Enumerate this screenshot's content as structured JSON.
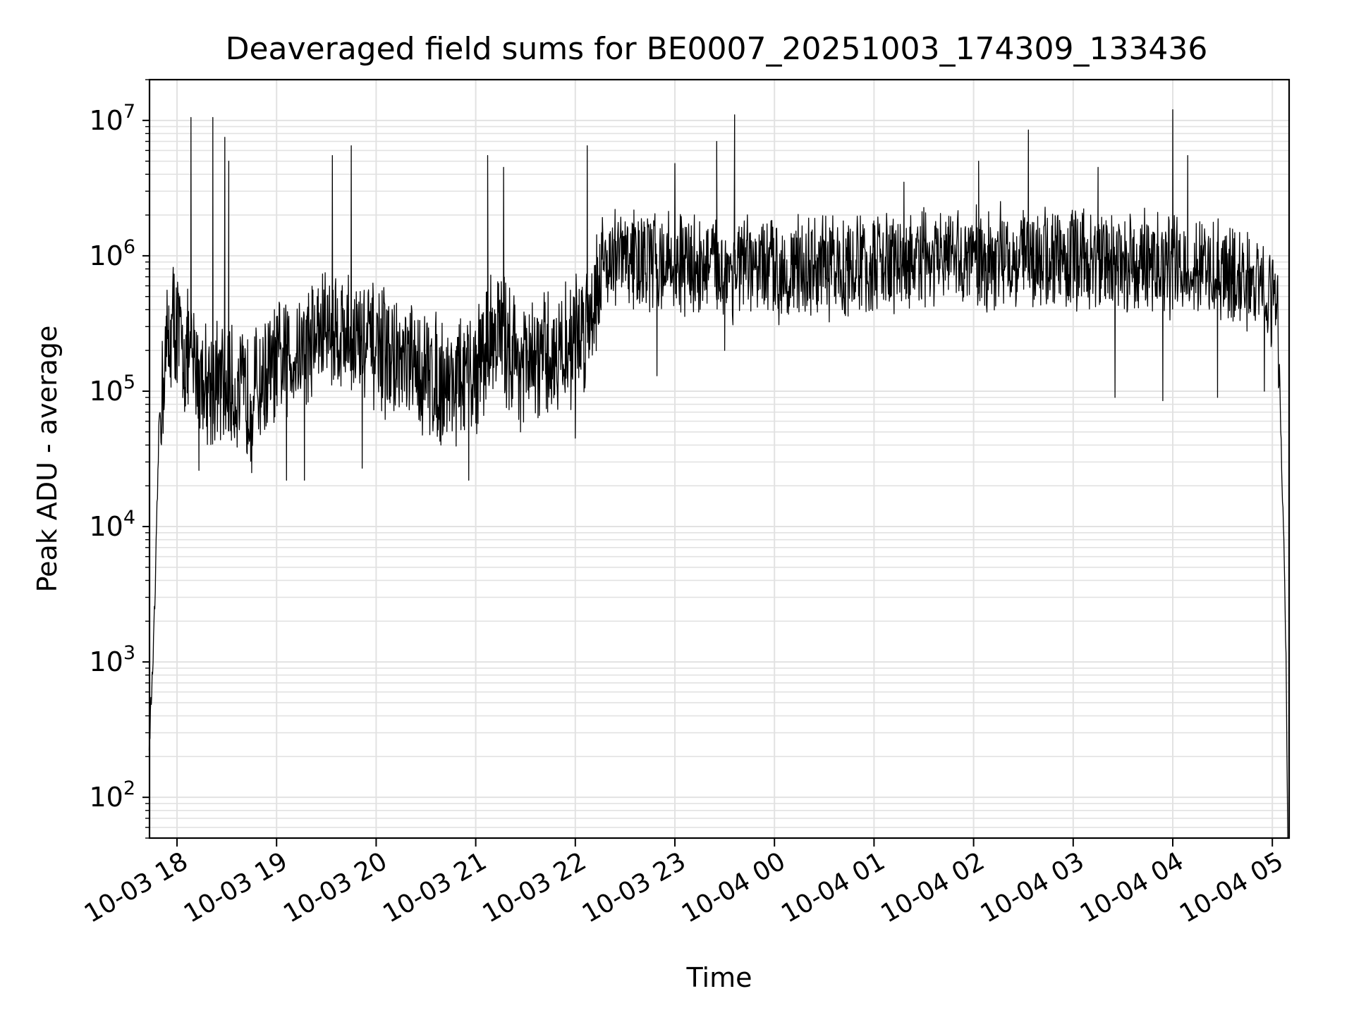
{
  "chart_data": {
    "type": "line",
    "title": "Deaveraged field sums for BE0007_20251003_174309_133436",
    "xlabel": "Time",
    "ylabel": "Peak ADU - average",
    "yscale": "log",
    "ylim": [
      50,
      20000000
    ],
    "xlim_hours": [
      17.72,
      29.18
    ],
    "grid": true,
    "line_color": "#000000",
    "x_tick_labels": [
      "10-03 18",
      "10-03 19",
      "10-03 20",
      "10-03 21",
      "10-03 22",
      "10-03 23",
      "10-04 00",
      "10-04 01",
      "10-04 02",
      "10-04 03",
      "10-04 04",
      "10-04 05"
    ],
    "x_tick_hours": [
      18,
      19,
      20,
      21,
      22,
      23,
      24,
      25,
      26,
      27,
      28,
      29
    ],
    "y_ticks": [
      {
        "exp": 2,
        "base": "10",
        "sup": "2"
      },
      {
        "exp": 3,
        "base": "10",
        "sup": "3"
      },
      {
        "exp": 4,
        "base": "10",
        "sup": "4"
      },
      {
        "exp": 5,
        "base": "10",
        "sup": "5"
      },
      {
        "exp": 6,
        "base": "10",
        "sup": "6"
      },
      {
        "exp": 7,
        "base": "10",
        "sup": "7"
      }
    ],
    "envelope": [
      {
        "t": 17.72,
        "v": 250
      },
      {
        "t": 17.75,
        "v": 700
      },
      {
        "t": 17.78,
        "v": 3000
      },
      {
        "t": 17.82,
        "v": 60000
      },
      {
        "t": 17.88,
        "v": 180000
      },
      {
        "t": 17.97,
        "v": 350000
      },
      {
        "t": 18.05,
        "v": 200000
      },
      {
        "t": 18.3,
        "v": 120000
      },
      {
        "t": 18.7,
        "v": 90000
      },
      {
        "t": 19.0,
        "v": 150000
      },
      {
        "t": 19.5,
        "v": 300000
      },
      {
        "t": 19.8,
        "v": 250000
      },
      {
        "t": 20.3,
        "v": 150000
      },
      {
        "t": 20.7,
        "v": 120000
      },
      {
        "t": 20.95,
        "v": 120000
      },
      {
        "t": 21.2,
        "v": 300000
      },
      {
        "t": 21.5,
        "v": 150000
      },
      {
        "t": 21.9,
        "v": 200000
      },
      {
        "t": 22.1,
        "v": 300000
      },
      {
        "t": 22.3,
        "v": 1000000
      },
      {
        "t": 23.5,
        "v": 800000
      },
      {
        "t": 24.5,
        "v": 800000
      },
      {
        "t": 25.5,
        "v": 900000
      },
      {
        "t": 26.5,
        "v": 1000000
      },
      {
        "t": 27.5,
        "v": 900000
      },
      {
        "t": 28.2,
        "v": 800000
      },
      {
        "t": 28.9,
        "v": 600000
      },
      {
        "t": 29.05,
        "v": 500000
      },
      {
        "t": 29.08,
        "v": 80000
      },
      {
        "t": 29.1,
        "v": 20000
      },
      {
        "t": 29.12,
        "v": 5000
      },
      {
        "t": 29.14,
        "v": 800
      },
      {
        "t": 29.155,
        "v": 50
      }
    ],
    "spikes": [
      {
        "t": 18.14,
        "v": 10500000
      },
      {
        "t": 18.36,
        "v": 10500000
      },
      {
        "t": 18.48,
        "v": 7500000
      },
      {
        "t": 18.52,
        "v": 5000000
      },
      {
        "t": 19.56,
        "v": 5500000
      },
      {
        "t": 19.75,
        "v": 6500000
      },
      {
        "t": 21.12,
        "v": 5500000
      },
      {
        "t": 21.28,
        "v": 4500000
      },
      {
        "t": 22.12,
        "v": 6500000
      },
      {
        "t": 23.0,
        "v": 4800000
      },
      {
        "t": 23.42,
        "v": 7000000
      },
      {
        "t": 23.6,
        "v": 11000000
      },
      {
        "t": 25.3,
        "v": 3500000
      },
      {
        "t": 26.05,
        "v": 5000000
      },
      {
        "t": 26.55,
        "v": 8500000
      },
      {
        "t": 27.25,
        "v": 4500000
      },
      {
        "t": 28.0,
        "v": 12000000
      },
      {
        "t": 28.15,
        "v": 5500000
      }
    ],
    "dips": [
      {
        "t": 18.22,
        "v": 26000
      },
      {
        "t": 18.75,
        "v": 25000
      },
      {
        "t": 19.1,
        "v": 22000
      },
      {
        "t": 19.28,
        "v": 22000
      },
      {
        "t": 19.86,
        "v": 27000
      },
      {
        "t": 20.65,
        "v": 40000
      },
      {
        "t": 20.93,
        "v": 22000
      },
      {
        "t": 21.45,
        "v": 50000
      },
      {
        "t": 22.0,
        "v": 45000
      },
      {
        "t": 22.82,
        "v": 130000
      },
      {
        "t": 23.5,
        "v": 200000
      },
      {
        "t": 27.42,
        "v": 90000
      },
      {
        "t": 27.9,
        "v": 85000
      },
      {
        "t": 28.45,
        "v": 90000
      },
      {
        "t": 28.92,
        "v": 100000
      }
    ]
  }
}
